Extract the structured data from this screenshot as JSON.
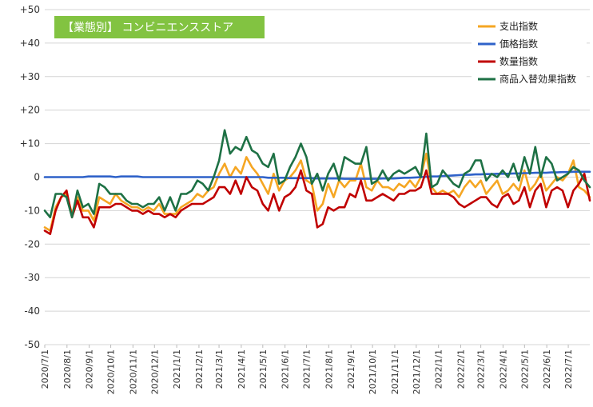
{
  "chart_data": {
    "type": "line",
    "title": "【業態別】 コンビニエンスストア",
    "ylim": [
      -50,
      50
    ],
    "y_ticks": [
      "+50",
      "+40",
      "+30",
      "+20",
      "+10",
      "0",
      "-10",
      "-20",
      "-30",
      "-40",
      "-50"
    ],
    "y_tick_values": [
      50,
      40,
      30,
      20,
      10,
      0,
      -10,
      -20,
      -30,
      -40,
      -50
    ],
    "x_start": "2020/7/1",
    "x_end": "2022/7/31",
    "x_tick_labels": [
      "2020/7/1",
      "2020/8/1",
      "2020/9/1",
      "2020/10/1",
      "2020/11/1",
      "2020/12/1",
      "2021/1/1",
      "2021/2/1",
      "2021/3/1",
      "2021/4/1",
      "2021/5/1",
      "2021/6/1",
      "2021/7/1",
      "2021/8/1",
      "2021/9/1",
      "2021/10/1",
      "2021/11/1",
      "2021/12/1",
      "2022/1/1",
      "2022/2/1",
      "2022/3/1",
      "2022/4/1",
      "2022/5/1",
      "2022/6/1",
      "2022/7/1"
    ],
    "grid": true,
    "legend_position": "top-right",
    "series": [
      {
        "name": "支出指数",
        "color": "#F5A623",
        "values": [
          -15,
          -16,
          -9,
          -6,
          -5,
          -11,
          -6,
          -10,
          -10,
          -13,
          -6,
          -7,
          -8,
          -5,
          -7,
          -8,
          -9,
          -9,
          -10,
          -9,
          -10,
          -8,
          -11,
          -11,
          -11,
          -9,
          -8,
          -7,
          -5,
          -6,
          -4,
          -3,
          1,
          4,
          0,
          3,
          1,
          6,
          3,
          1,
          -2,
          -5,
          1,
          -4,
          -1,
          0,
          2,
          5,
          -1,
          -2,
          -10,
          -8,
          -2,
          -6,
          -1,
          -3,
          -1,
          -1,
          4,
          -3,
          -4,
          -1,
          -3,
          -3,
          -4,
          -2,
          -3,
          -1,
          -3,
          0,
          7,
          -3,
          -5,
          -4,
          -5,
          -4,
          -6,
          -3,
          -1,
          -3,
          -1,
          -5,
          -3,
          -1,
          -5,
          -4,
          -2,
          -4,
          2,
          -4,
          -2,
          1,
          -4,
          -2,
          0,
          -1,
          1,
          5,
          -3,
          -4,
          -6
        ]
      },
      {
        "name": "価格指数",
        "color": "#2F62C9",
        "values": [
          0,
          0,
          0,
          0,
          0,
          0,
          0,
          0,
          0.2,
          0.2,
          0.2,
          0.2,
          0.2,
          0,
          0.2,
          0.2,
          0.2,
          0.2,
          0,
          0,
          0,
          0,
          0,
          0,
          0,
          0,
          0,
          0,
          0,
          0,
          0,
          0,
          0,
          0,
          0,
          0,
          0,
          0,
          0,
          0,
          0,
          -0.2,
          -0.2,
          -0.2,
          -0.2,
          -0.3,
          -0.3,
          -0.3,
          -0.3,
          -0.3,
          -0.4,
          -0.4,
          -0.4,
          -0.4,
          -0.4,
          -0.5,
          -0.5,
          -0.5,
          -0.5,
          -0.5,
          -0.5,
          -0.5,
          -0.4,
          -0.4,
          -0.4,
          -0.3,
          -0.2,
          -0.2,
          -0.1,
          0,
          0.1,
          0.2,
          0.2,
          0.3,
          0.4,
          0.5,
          0.6,
          0.7,
          0.7,
          0.8,
          0.8,
          0.9,
          0.9,
          1,
          1,
          1,
          1.1,
          1.1,
          1.2,
          1.2,
          1.3,
          1.3,
          1.3,
          1.4,
          1.4,
          1.5,
          1.5,
          1.6,
          1.6,
          1.6,
          1.6
        ]
      },
      {
        "name": "数量指数",
        "color": "#C00000",
        "values": [
          -16,
          -17,
          -10,
          -6,
          -4,
          -12,
          -7,
          -12,
          -12,
          -15,
          -9,
          -9,
          -9,
          -8,
          -8,
          -9,
          -10,
          -10,
          -11,
          -10,
          -11,
          -11,
          -12,
          -11,
          -12,
          -10,
          -9,
          -8,
          -8,
          -8,
          -7,
          -6,
          -3,
          -3,
          -5,
          -1,
          -5,
          0,
          -3,
          -4,
          -8,
          -10,
          -5,
          -10,
          -6,
          -5,
          -3,
          2,
          -4,
          -5,
          -15,
          -14,
          -9,
          -10,
          -9,
          -9,
          -5,
          -6,
          -1,
          -7,
          -7,
          -6,
          -5,
          -6,
          -7,
          -5,
          -5,
          -4,
          -4,
          -3,
          2,
          -5,
          -5,
          -5,
          -5,
          -6,
          -8,
          -9,
          -8,
          -7,
          -6,
          -6,
          -8,
          -9,
          -6,
          -5,
          -8,
          -7,
          -3,
          -9,
          -4,
          -2,
          -9,
          -4,
          -3,
          -4,
          -9,
          -4,
          -2,
          1,
          -7
        ]
      },
      {
        "name": "商品入替効果指数",
        "color": "#1E7145",
        "values": [
          -10,
          -12,
          -5,
          -5,
          -6,
          -12,
          -4,
          -9,
          -8,
          -11,
          -2,
          -3,
          -5,
          -5,
          -5,
          -7,
          -8,
          -8,
          -9,
          -8,
          -8,
          -6,
          -10,
          -6,
          -10,
          -5,
          -5,
          -4,
          -1,
          -2,
          -4,
          0,
          5,
          14,
          7,
          9,
          8,
          12,
          8,
          7,
          4,
          3,
          7,
          -2,
          -1,
          3,
          6,
          10,
          6,
          -2,
          1,
          -4,
          1,
          4,
          -1,
          6,
          5,
          4,
          4,
          9,
          -2,
          -1,
          2,
          -1,
          1,
          2,
          1,
          2,
          3,
          0,
          13,
          -3,
          -2,
          2,
          0,
          -2,
          -3,
          1,
          2,
          5,
          5,
          -1,
          1,
          0,
          2,
          0,
          4,
          -1,
          6,
          1,
          9,
          0,
          6,
          4,
          -1,
          0,
          1,
          3,
          2,
          -1,
          -3
        ]
      }
    ]
  }
}
